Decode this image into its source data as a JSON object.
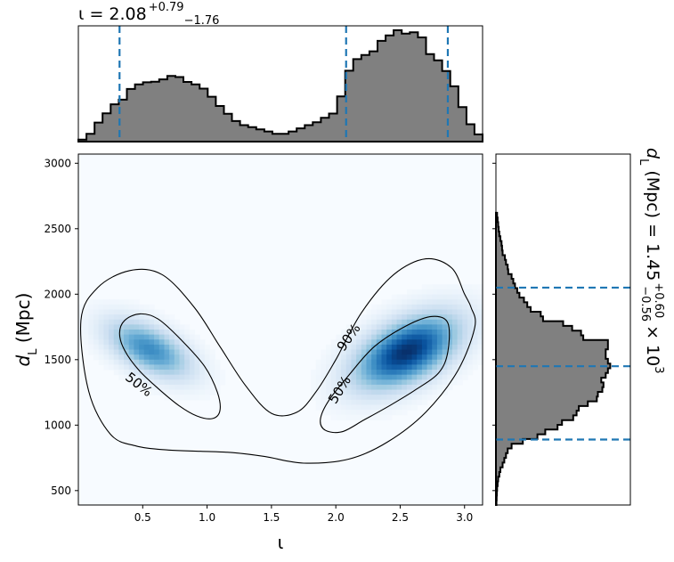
{
  "chart_data": [
    {
      "type": "heatmap",
      "xlabel": "ι",
      "ylabel": "d_L (Mpc)",
      "xlim": [
        0.0,
        3.14
      ],
      "ylim": [
        390,
        3070
      ],
      "x_ticks": [
        0.5,
        1.0,
        1.5,
        2.0,
        2.5,
        3.0
      ],
      "y_ticks": [
        500,
        1000,
        1500,
        2000,
        2500,
        3000
      ],
      "colormap": "Blues",
      "density_modes": [
        {
          "x": 0.55,
          "y": 1580,
          "sx": 0.22,
          "sy": 150,
          "rho": -0.55,
          "weight": 0.65
        },
        {
          "x": 2.55,
          "y": 1560,
          "sx": 0.27,
          "sy": 190,
          "rho": 0.5,
          "weight": 1.0
        }
      ],
      "contours": [
        {
          "level": "50%",
          "x": [
            0.32,
            0.36,
            0.48,
            0.62,
            0.8,
            0.98,
            1.08,
            1.1,
            1.04,
            0.92,
            0.78,
            0.62,
            0.47,
            0.36,
            0.32
          ],
          "y": [
            1700,
            1800,
            1850,
            1810,
            1650,
            1450,
            1250,
            1110,
            1050,
            1070,
            1150,
            1280,
            1420,
            1570,
            1700
          ]
        },
        {
          "level": "50%",
          "x": [
            1.88,
            1.94,
            2.1,
            2.3,
            2.55,
            2.75,
            2.87,
            2.87,
            2.8,
            2.62,
            2.42,
            2.22,
            2.05,
            1.92,
            1.88
          ],
          "y": [
            1040,
            1180,
            1380,
            1600,
            1760,
            1830,
            1780,
            1560,
            1400,
            1270,
            1150,
            1040,
            950,
            960,
            1040
          ]
        },
        {
          "level": "90%",
          "x": [
            0.02,
            0.15,
            0.4,
            0.65,
            0.9,
            1.1,
            1.3,
            1.5,
            1.7,
            1.85,
            2.0,
            2.2,
            2.45,
            2.7,
            2.9,
            3.0,
            3.05,
            3.08,
            2.95,
            2.7,
            2.4,
            2.1,
            1.75,
            1.45,
            1.2,
            0.95,
            0.7,
            0.45,
            0.25,
            0.08,
            0.02
          ],
          "y": [
            1800,
            2050,
            2180,
            2150,
            1900,
            1600,
            1300,
            1090,
            1100,
            1260,
            1500,
            1860,
            2150,
            2270,
            2200,
            2000,
            1900,
            1750,
            1420,
            1100,
            870,
            740,
            710,
            760,
            790,
            800,
            810,
            840,
            930,
            1260,
            1800
          ]
        }
      ],
      "contour_labels": [
        {
          "text": "50%",
          "x": 0.47,
          "y": 1310,
          "angle": 38
        },
        {
          "text": "50%",
          "x": 2.03,
          "y": 1270,
          "angle": -58
        },
        {
          "text": "90%",
          "x": 2.1,
          "y": 1670,
          "angle": -55
        }
      ]
    },
    {
      "type": "bar",
      "title": "ι = 2.08",
      "title_sup": "+0.79",
      "title_sub": "−1.76",
      "xlim": [
        0.0,
        3.14
      ],
      "bin_edges": [
        0.0,
        0.063,
        0.126,
        0.188,
        0.251,
        0.314,
        0.377,
        0.44,
        0.502,
        0.565,
        0.628,
        0.691,
        0.754,
        0.816,
        0.879,
        0.942,
        1.005,
        1.068,
        1.131,
        1.193,
        1.256,
        1.319,
        1.382,
        1.445,
        1.507,
        1.57,
        1.633,
        1.696,
        1.759,
        1.821,
        1.884,
        1.947,
        2.01,
        2.073,
        2.135,
        2.198,
        2.261,
        2.324,
        2.387,
        2.449,
        2.512,
        2.575,
        2.638,
        2.701,
        2.763,
        2.826,
        2.889,
        2.952,
        3.015,
        3.077,
        3.14
      ],
      "values": [
        0.7,
        2.7,
        6.6,
        9.8,
        12.9,
        14.5,
        18.2,
        19.8,
        20.5,
        20.7,
        21.5,
        22.7,
        22.3,
        20.6,
        19.8,
        18.3,
        15.5,
        12.3,
        9.6,
        7.1,
        5.7,
        5.0,
        4.2,
        3.5,
        2.7,
        2.7,
        3.5,
        4.6,
        5.7,
        6.7,
        8.2,
        9.7,
        15.6,
        24.5,
        28.5,
        29.9,
        31.2,
        34.8,
        36.7,
        38.5,
        37.3,
        37.8,
        36.0,
        30.2,
        28.1,
        24.4,
        19.1,
        11.9,
        6.0,
        2.5
      ],
      "ylim": [
        0,
        40
      ],
      "reference_lines": [
        0.32,
        2.08,
        2.87
      ],
      "line_color": "#1f77b4",
      "fill_color": "#808080"
    },
    {
      "type": "bar",
      "orientation": "horizontal",
      "title": "d_L (Mpc) = 1.45",
      "title_sup": "+0.60",
      "title_sub": "−0.56",
      "title_suffix": "× 10",
      "title_suffix_exp": "3",
      "ylim": [
        390,
        3070
      ],
      "bin_edges": [
        390,
        426,
        462,
        498,
        534,
        570,
        606,
        642,
        678,
        714,
        750,
        786,
        822,
        858,
        894,
        930,
        966,
        1002,
        1038,
        1074,
        1110,
        1146,
        1182,
        1218,
        1254,
        1290,
        1326,
        1362,
        1398,
        1434,
        1470,
        1506,
        1542,
        1578,
        1614,
        1650,
        1686,
        1722,
        1758,
        1794,
        1830,
        1866,
        1902,
        1938,
        1974,
        2010,
        2046,
        2082,
        2118,
        2154,
        2190,
        2226,
        2262,
        2298,
        2334,
        2370,
        2406,
        2442,
        2478,
        2514,
        2550,
        2586,
        2622
      ],
      "values": [
        0.5,
        0.6,
        0.8,
        1.0,
        1.5,
        2.0,
        3.0,
        4.0,
        6.0,
        7.5,
        9.0,
        10.5,
        14.0,
        24.0,
        37.0,
        44.0,
        55.0,
        59.0,
        69.0,
        72.0,
        74.0,
        82.0,
        90.0,
        91.0,
        95.0,
        96.0,
        94.0,
        98.0,
        100.0,
        102.0,
        100.0,
        98.0,
        98.0,
        100.0,
        100.0,
        78.0,
        76.0,
        68.0,
        60.0,
        42.0,
        40.0,
        31.0,
        28.0,
        25.0,
        21.0,
        19.0,
        17.0,
        15.5,
        14.0,
        11.0,
        10.5,
        9.0,
        8.0,
        6.0,
        5.5,
        5.0,
        4.0,
        3.0,
        2.5,
        2.0,
        1.5,
        1.0
      ],
      "xlim": [
        0,
        120
      ],
      "reference_lines": [
        890,
        1450,
        2050
      ],
      "line_color": "#1f77b4",
      "fill_color": "#808080"
    }
  ]
}
